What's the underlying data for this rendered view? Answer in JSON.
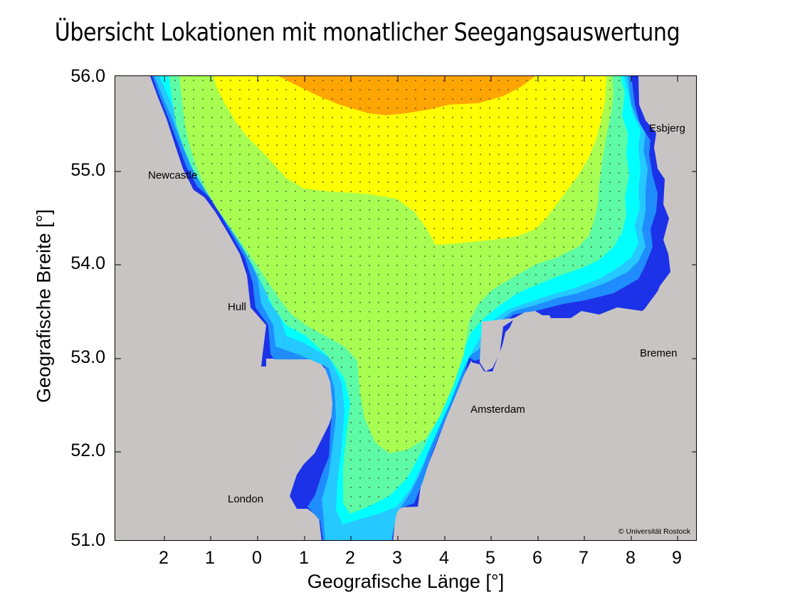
{
  "map": {
    "title": "Übersicht Lokationen mit monatlicher Seegangsauswertung",
    "xlabel": "Geografische Länge [°]",
    "ylabel": "Geografische Breite [°]",
    "x_ticks": [
      "2",
      "1",
      "0",
      "1",
      "2",
      "3",
      "4",
      "5",
      "6",
      "7",
      "8",
      "9"
    ],
    "y_ticks": [
      "56.0",
      "55.0",
      "54.0",
      "53.0",
      "52.0",
      "51.0"
    ],
    "cities": [
      "Esbjerg",
      "Newcastle",
      "Hull",
      "Bremen",
      "Amsterdam",
      "London"
    ],
    "copyright": "© Universität Rostock",
    "colors": {
      "land": "#c9c4c4",
      "blue": "#1c32e8",
      "mid_blue": "#1f8dff",
      "light_blue": "#25c8ff",
      "cyan": "#00ffff",
      "aquamarine": "#5dfba5",
      "light_green": "#a8ff52",
      "yellow": "#ffff00",
      "orange": "#ffa500",
      "dots": "#3a3a3a"
    }
  }
}
